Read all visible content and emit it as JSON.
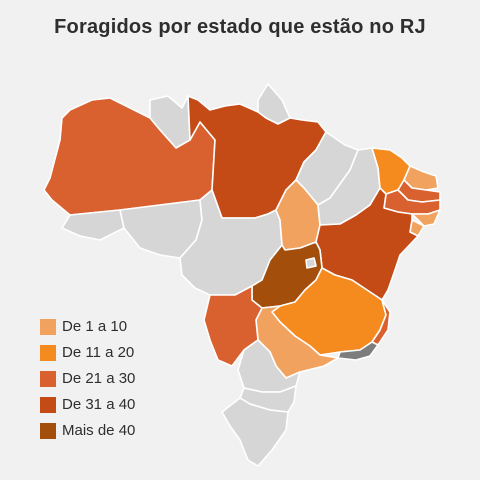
{
  "title": "Foragidos por estado que estão no RJ",
  "colors": {
    "none": "#d6d6d6",
    "rj": "#7d7d7d",
    "c1_10": "#f2a25f",
    "c11_20": "#f58a1f",
    "c21_30": "#d9602f",
    "c31_40": "#c44a16",
    "c40plus": "#a34e0b"
  },
  "legend": [
    {
      "label": "De 1 a 10",
      "color": "#f2a25f"
    },
    {
      "label": "De 11 a 20",
      "color": "#f58a1f"
    },
    {
      "label": "De 21 a 30",
      "color": "#d9602f"
    },
    {
      "label": "De 31 a 40",
      "color": "#c44a16"
    },
    {
      "label": "Mais de 40",
      "color": "#a34e0b"
    }
  ],
  "states": {
    "AM": "21-30",
    "PA": "31-40",
    "RR": "none",
    "AP": "none",
    "AC": "none",
    "RO": "none",
    "MT": "none",
    "TO": "1-10",
    "MA": "none",
    "PI": "none",
    "CE": "11-20",
    "RN": "1-10",
    "PB": "21-30",
    "PE": "21-30",
    "AL": "1-10",
    "SE": "1-10",
    "BA": "31-40",
    "GO": "40+",
    "DF": "none",
    "MG": "11-20",
    "ES": "21-30",
    "RJ": "rj",
    "SP": "1-10",
    "MS": "21-30",
    "PR": "none",
    "SC": "none",
    "RS": "none"
  }
}
